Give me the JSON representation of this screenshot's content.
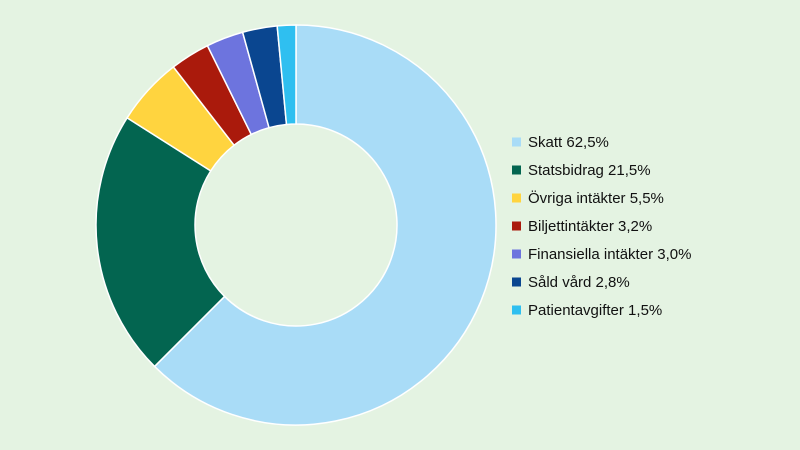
{
  "chart_data": {
    "type": "pie",
    "variant": "donut",
    "title": "",
    "legend_position": "right",
    "slices": [
      {
        "label": "Skatt 62,5%",
        "value": 62.5,
        "color": "#a9dcf7"
      },
      {
        "label": "Statsbidrag 21,5%",
        "value": 21.5,
        "color": "#036550"
      },
      {
        "label": "Övriga intäkter 5,5%",
        "value": 5.5,
        "color": "#ffd43f"
      },
      {
        "label": "Biljettintäkter 3,2%",
        "value": 3.2,
        "color": "#aa1a0c"
      },
      {
        "label": "Finansiella intäkter 3,0%",
        "value": 3.0,
        "color": "#6d74de"
      },
      {
        "label": "Såld vård 2,8%",
        "value": 2.8,
        "color": "#0a4690"
      },
      {
        "label": "Patientavgifter 1,5%",
        "value": 1.5,
        "color": "#2fbff0"
      }
    ]
  }
}
